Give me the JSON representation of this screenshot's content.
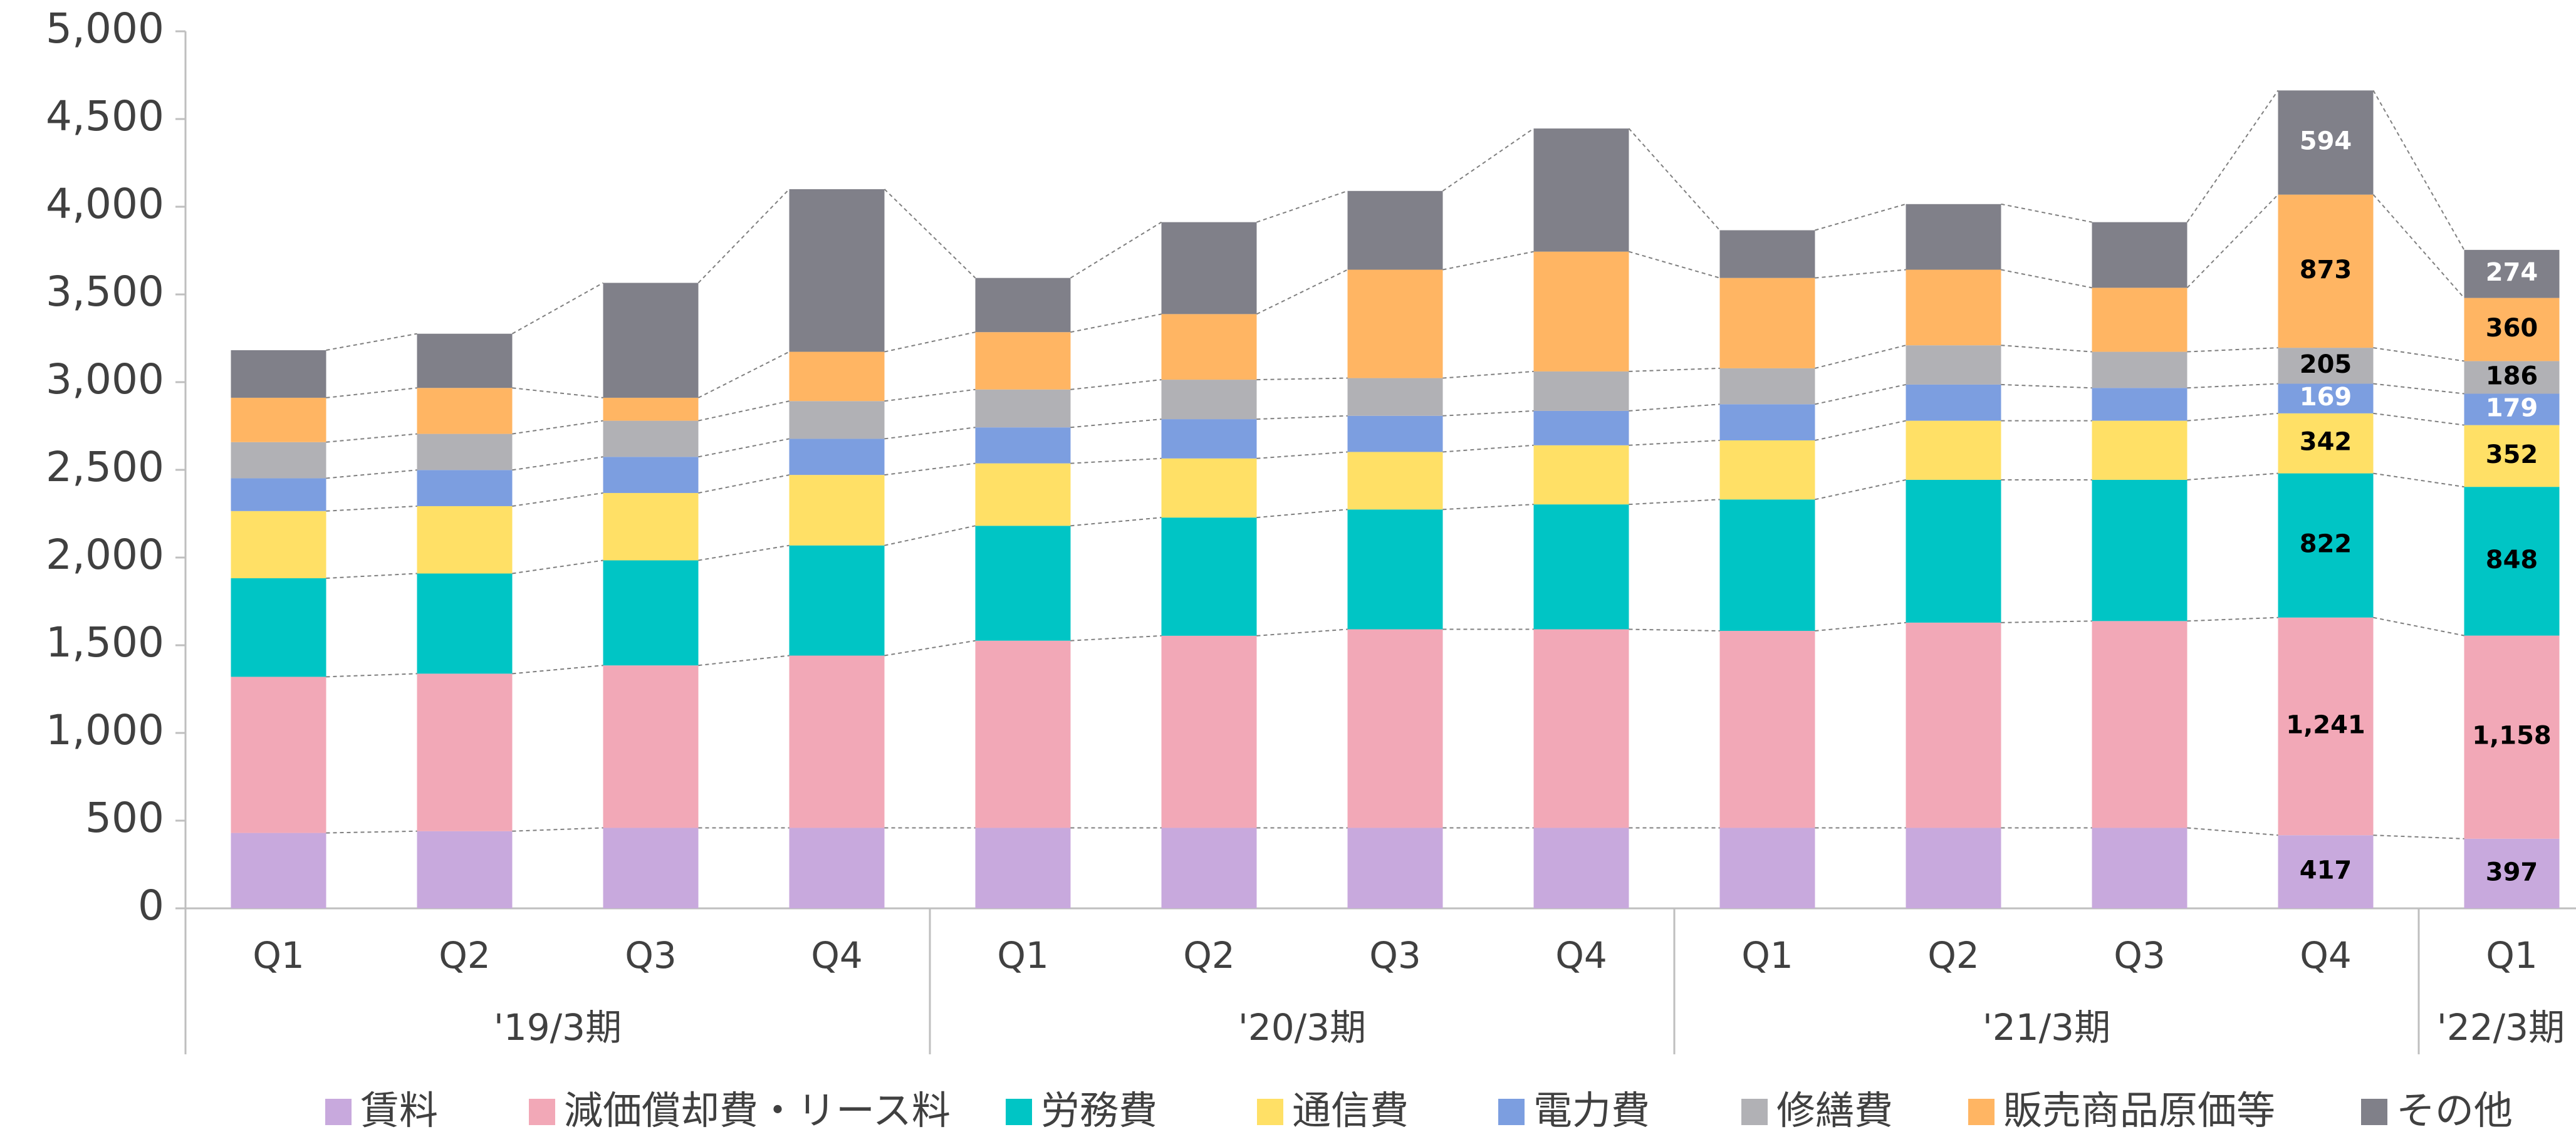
{
  "chart_data": {
    "type": "stacked_bar",
    "categories": [
      "Q1",
      "Q2",
      "Q3",
      "Q4",
      "Q1",
      "Q2",
      "Q3",
      "Q4",
      "Q1",
      "Q2",
      "Q3",
      "Q4",
      "Q1"
    ],
    "groups": [
      {
        "label": "'19/3期",
        "count": 4
      },
      {
        "label": "'20/3期",
        "count": 4
      },
      {
        "label": "'21/3期",
        "count": 4
      },
      {
        "label": "'22/3期",
        "count": 1
      }
    ],
    "ylim": [
      0,
      5000
    ],
    "yticks": [
      0,
      500,
      {
        "value": 1000,
        "label": "1,000"
      },
      {
        "value": 1500,
        "label": "1,500"
      },
      {
        "value": 2000,
        "label": "2,000"
      },
      {
        "value": 2500,
        "label": "2,500"
      },
      {
        "value": 3000,
        "label": "3,000"
      },
      {
        "value": 3500,
        "label": "3,500"
      },
      {
        "value": 4000,
        "label": "4,000"
      },
      {
        "value": 4500,
        "label": "4,500"
      },
      {
        "value": 5000,
        "label": "5,000"
      }
    ],
    "legend": "bottom",
    "series": [
      {
        "name": "賃料",
        "color": "#c8a9dd",
        "label_color": "#000000",
        "values": [
          430,
          440,
          459,
          459,
          459,
          459,
          459,
          459,
          459,
          459,
          459,
          417,
          397
        ],
        "value_labels": [
          null,
          null,
          null,
          null,
          null,
          null,
          null,
          null,
          null,
          null,
          null,
          "417",
          "397"
        ]
      },
      {
        "name": "減価償却費・リース料",
        "color": "#f2a8b7",
        "label_color": "#000000",
        "values": [
          890,
          898,
          926,
          982,
          1067,
          1095,
          1132,
          1132,
          1123,
          1170,
          1179,
          1241,
          1158
        ],
        "value_labels": [
          null,
          null,
          null,
          null,
          null,
          null,
          null,
          null,
          null,
          null,
          null,
          "1,241",
          "1,158"
        ]
      },
      {
        "name": "労務費",
        "color": "#00c5c5",
        "label_color": "#000000",
        "values": [
          562,
          571,
          599,
          628,
          655,
          674,
          683,
          712,
          749,
          814,
          805,
          822,
          848
        ],
        "value_labels": [
          null,
          null,
          null,
          null,
          null,
          null,
          null,
          null,
          null,
          null,
          null,
          "822",
          "848"
        ]
      },
      {
        "name": "通信費",
        "color": "#ffe066",
        "label_color": "#000000",
        "values": [
          383,
          384,
          384,
          402,
          356,
          337,
          328,
          337,
          337,
          337,
          337,
          342,
          352
        ],
        "value_labels": [
          null,
          null,
          null,
          null,
          null,
          null,
          null,
          null,
          null,
          null,
          null,
          "342",
          "352"
        ]
      },
      {
        "name": "電力費",
        "color": "#7c9ee0",
        "label_color": "#ffffff",
        "values": [
          187,
          206,
          206,
          206,
          205,
          224,
          206,
          196,
          206,
          206,
          187,
          169,
          179
        ],
        "value_labels": [
          null,
          null,
          null,
          null,
          null,
          null,
          null,
          null,
          null,
          null,
          null,
          "169",
          "179"
        ]
      },
      {
        "name": "修繕費",
        "color": "#b1b1b5",
        "label_color": "#000000",
        "values": [
          206,
          206,
          206,
          215,
          216,
          225,
          215,
          225,
          205,
          224,
          206,
          205,
          186
        ],
        "value_labels": [
          null,
          null,
          null,
          null,
          null,
          null,
          null,
          null,
          null,
          null,
          null,
          "205",
          "186"
        ]
      },
      {
        "name": "販売商品原価等",
        "color": "#ffb563",
        "label_color": "#000000",
        "values": [
          253,
          262,
          131,
          281,
          327,
          374,
          618,
          683,
          515,
          431,
          365,
          873,
          360
        ],
        "value_labels": [
          null,
          null,
          null,
          null,
          null,
          null,
          null,
          null,
          null,
          null,
          null,
          "873",
          "360"
        ]
      },
      {
        "name": "その他",
        "color": "#808089",
        "label_color": "#ffffff",
        "values": [
          271,
          309,
          655,
          927,
          309,
          524,
          449,
          702,
          272,
          374,
          374,
          594,
          274
        ],
        "value_labels": [
          null,
          null,
          null,
          null,
          null,
          null,
          null,
          null,
          null,
          null,
          null,
          "594",
          "274"
        ]
      }
    ]
  }
}
